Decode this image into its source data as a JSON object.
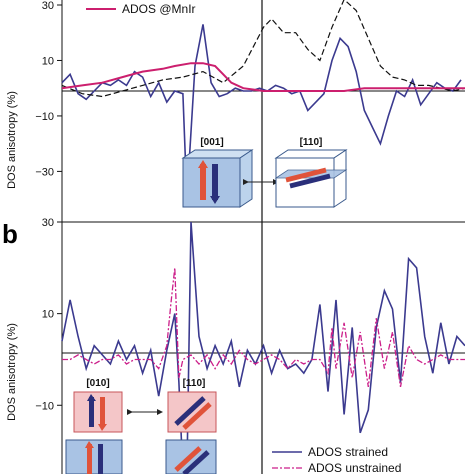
{
  "colors": {
    "strained": "#3b3a8f",
    "unstrained": "#cc1f8a",
    "mnir": "#cc1f6e",
    "black_dashed": "#111111",
    "inset_blue": "#a9c3e4",
    "inset_pink": "#f4c6c8",
    "arrow_red": "#e0533a",
    "arrow_navy": "#2a2f7a"
  },
  "chart_data": [
    {
      "id": "a",
      "type": "line",
      "panel_label": "",
      "ylabel": "DOS anisotropy (%)",
      "ylim": [
        -45,
        30
      ],
      "yticks": [
        30,
        10,
        -10,
        -30
      ],
      "xlim": [
        0,
        100
      ],
      "grid": false,
      "legend": {
        "placement": "top-left",
        "entries": [
          "ADOS @MnIr"
        ]
      },
      "insets": [
        "[001]",
        "[110]"
      ],
      "series": [
        {
          "name": "",
          "style": "solid",
          "color_key": "strained",
          "x": [
            0,
            2,
            4,
            6,
            8,
            10,
            12,
            14,
            16,
            18,
            20,
            22,
            24,
            26,
            28,
            30,
            31,
            33,
            35,
            37,
            39,
            41,
            43,
            45,
            47,
            49,
            51,
            53,
            55,
            57,
            59,
            61,
            63,
            65,
            67,
            69,
            71,
            73,
            75,
            77,
            79,
            81,
            83,
            85,
            87,
            89,
            91,
            93,
            95,
            97,
            99
          ],
          "y": [
            2,
            5,
            -2,
            -4,
            -1,
            2,
            1,
            3,
            1,
            6,
            4,
            -3,
            2,
            -5,
            -1,
            -2,
            -40,
            8,
            23,
            2,
            -3,
            -2,
            0,
            -1,
            -1,
            0,
            -1,
            1,
            0,
            -2,
            -1,
            -8,
            -5,
            -2,
            10,
            18,
            15,
            6,
            -8,
            -14,
            -20,
            -10,
            -1,
            -3,
            3,
            -6,
            -2,
            2,
            0,
            -1,
            3
          ]
        },
        {
          "name": "",
          "style": "dashed",
          "color_key": "black_dashed",
          "x": [
            0,
            5,
            10,
            15,
            20,
            25,
            30,
            35,
            40,
            45,
            50,
            52,
            55,
            58,
            61,
            64,
            67,
            70,
            73,
            76,
            79,
            82,
            85,
            88,
            91,
            94,
            97,
            100
          ],
          "y": [
            1,
            -2,
            -3,
            -1,
            1,
            3,
            4,
            6,
            2,
            8,
            22,
            25,
            20,
            20,
            14,
            10,
            22,
            32,
            28,
            18,
            8,
            4,
            3,
            1,
            1,
            0,
            -1,
            0
          ]
        },
        {
          "name": "ADOS @MnIr",
          "style": "solid",
          "color_key": "mnir",
          "x": [
            0,
            5,
            10,
            15,
            20,
            25,
            28,
            32,
            35,
            38,
            40,
            42,
            45,
            50,
            55,
            60,
            65,
            70,
            75,
            80,
            85,
            90,
            95,
            100
          ],
          "y": [
            0,
            1,
            2,
            4,
            6,
            7,
            8,
            9,
            9,
            8,
            5,
            2,
            0,
            -1,
            -1,
            -1,
            -1,
            -1,
            0,
            0,
            0,
            0,
            0,
            0
          ]
        }
      ]
    },
    {
      "id": "b",
      "type": "line",
      "panel_label": "b",
      "ylabel": "DOS anisotropy (%)",
      "ylim": [
        -25,
        30
      ],
      "yticks": [
        30,
        10,
        -10
      ],
      "xlim": [
        0,
        100
      ],
      "grid": false,
      "legend": {
        "placement": "bottom-right",
        "entries": [
          "ADOS strained",
          "ADOS unstrained"
        ]
      },
      "insets": [
        "[010]",
        "[110]"
      ],
      "series": [
        {
          "name": "ADOS strained",
          "style": "solid",
          "color_key": "strained",
          "x": [
            0,
            2,
            4,
            6,
            8,
            10,
            12,
            14,
            16,
            18,
            20,
            22,
            24,
            26,
            28,
            29,
            30,
            31,
            32,
            34,
            36,
            38,
            40,
            42,
            44,
            46,
            48,
            50,
            52,
            54,
            56,
            58,
            60,
            62,
            64,
            66,
            68,
            70,
            72,
            74,
            76,
            78,
            80,
            82,
            84,
            86,
            88,
            90,
            92,
            94,
            96,
            98,
            100
          ],
          "y": [
            4,
            13,
            5,
            -2,
            3,
            1,
            -1,
            4,
            0,
            3,
            -3,
            2,
            -8,
            2,
            10,
            -5,
            -25,
            -25,
            30,
            5,
            -2,
            3,
            -1,
            4,
            -6,
            2,
            -1,
            3,
            -3,
            2,
            -2,
            -1,
            -3,
            0,
            12,
            -7,
            13,
            -12,
            7,
            -16,
            -11,
            7,
            15,
            11,
            -5,
            22,
            20,
            5,
            -3,
            8,
            -1,
            5,
            3
          ]
        },
        {
          "name": "ADOS unstrained",
          "style": "dashdot",
          "color_key": "unstrained",
          "x": [
            0,
            2,
            4,
            6,
            8,
            10,
            12,
            14,
            16,
            18,
            20,
            22,
            24,
            26,
            27,
            28,
            29,
            30,
            32,
            34,
            36,
            38,
            40,
            42,
            44,
            46,
            48,
            50,
            52,
            54,
            56,
            58,
            60,
            62,
            64,
            66,
            67,
            68,
            70,
            72,
            74,
            76,
            78,
            80,
            82,
            84,
            86,
            88,
            90,
            92,
            94,
            96,
            98,
            100
          ],
          "y": [
            0,
            0,
            1,
            0,
            -1,
            0,
            0,
            1,
            -1,
            0,
            0,
            0,
            -2,
            3,
            12,
            20,
            -4,
            0,
            1,
            -1,
            1,
            -2,
            1,
            -1,
            2,
            0,
            -1,
            0,
            1,
            0,
            -2,
            0,
            -1,
            0,
            0,
            -3,
            7,
            -2,
            8,
            -4,
            6,
            -6,
            9,
            -2,
            6,
            -6,
            3,
            0,
            -1,
            0,
            1,
            0,
            0,
            0
          ]
        }
      ]
    }
  ]
}
